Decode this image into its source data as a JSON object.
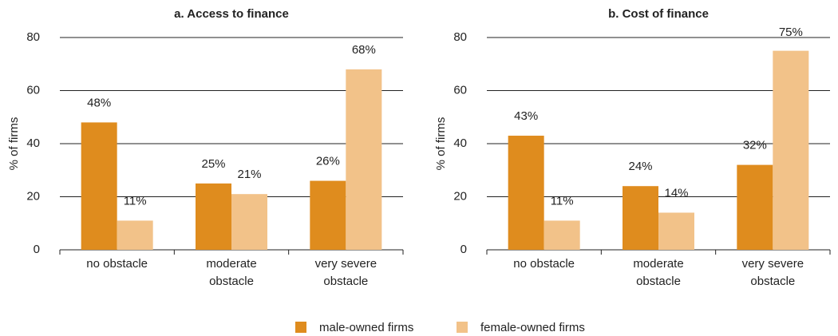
{
  "chart_data": [
    {
      "type": "bar",
      "title": "a. Access to finance",
      "ylabel": "% of firms",
      "categories": [
        "no obstacle",
        "moderate obstacle",
        "very severe obstacle"
      ],
      "series": [
        {
          "name": "male-owned firms",
          "color": "#df8c1e",
          "values": [
            48,
            25,
            26
          ],
          "value_labels": [
            "48%",
            "25%",
            "26%"
          ]
        },
        {
          "name": "female-owned firms",
          "color": "#f2c289",
          "values": [
            11,
            21,
            68
          ],
          "value_labels": [
            "11%",
            "21%",
            "68%"
          ]
        }
      ],
      "ylim": [
        0,
        80
      ],
      "yticks": [
        0,
        20,
        40,
        60,
        80
      ],
      "grid": true
    },
    {
      "type": "bar",
      "title": "b. Cost of finance",
      "ylabel": "% of firms",
      "categories": [
        "no obstacle",
        "moderate obstacle",
        "very severe obstacle"
      ],
      "series": [
        {
          "color": "#df8c1e",
          "values": [
            43,
            24,
            32
          ],
          "value_labels": [
            "43%",
            "24%",
            "32%"
          ]
        },
        {
          "color": "#f2c289",
          "values": [
            11,
            14,
            75
          ],
          "value_labels": [
            "11%",
            "14%",
            "75%"
          ]
        }
      ],
      "ylim": [
        0,
        80
      ],
      "yticks": [
        0,
        20,
        40,
        60,
        80
      ],
      "grid": true
    }
  ]
}
